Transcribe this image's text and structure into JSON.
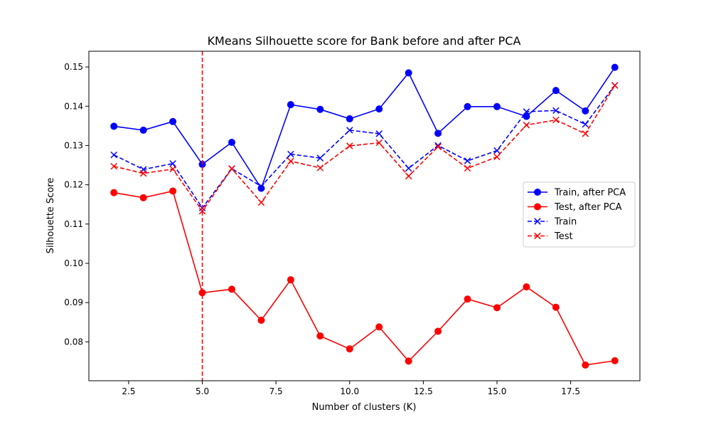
{
  "chart_data": {
    "type": "line",
    "title": "KMeans Silhouette score for Bank before and after PCA",
    "xlabel": "Number of clusters (K)",
    "ylabel": "Silhouette Score",
    "xlim": [
      1.15,
      19.85
    ],
    "ylim": [
      0.0701,
      0.154
    ],
    "xticks": [
      2.5,
      5.0,
      7.5,
      10.0,
      12.5,
      15.0,
      17.5
    ],
    "xtick_labels": [
      "2.5",
      "5.0",
      "7.5",
      "10.0",
      "12.5",
      "15.0",
      "17.5"
    ],
    "yticks": [
      0.08,
      0.09,
      0.1,
      0.11,
      0.12,
      0.13,
      0.14,
      0.15
    ],
    "ytick_labels": [
      "0.08",
      "0.09",
      "0.10",
      "0.11",
      "0.12",
      "0.13",
      "0.14",
      "0.15"
    ],
    "grid": false,
    "legend_position": "center-right",
    "x": [
      2,
      3,
      4,
      5,
      6,
      7,
      8,
      9,
      10,
      11,
      12,
      13,
      14,
      15,
      16,
      17,
      18,
      19
    ],
    "series": [
      {
        "name": "Train, after PCA",
        "color": "#0000ff",
        "style": "solid",
        "marker": "circle",
        "values": [
          0.1349,
          0.1339,
          0.1361,
          0.1252,
          0.1308,
          0.1191,
          0.1404,
          0.1392,
          0.1368,
          0.1393,
          0.1485,
          0.1331,
          0.1399,
          0.1399,
          0.1374,
          0.144,
          0.1388,
          0.1499
        ]
      },
      {
        "name": "Test, after PCA",
        "color": "#ff0000",
        "style": "solid",
        "marker": "circle",
        "values": [
          0.118,
          0.1167,
          0.1184,
          0.0925,
          0.0934,
          0.0855,
          0.0958,
          0.0815,
          0.0782,
          0.0838,
          0.0751,
          0.0827,
          0.0909,
          0.0887,
          0.094,
          0.0888,
          0.0741,
          0.0752
        ]
      },
      {
        "name": "Train",
        "color": "#0000ff",
        "style": "dashed",
        "marker": "x",
        "values": [
          0.1276,
          0.1239,
          0.1254,
          0.1141,
          0.1241,
          0.1196,
          0.1278,
          0.1268,
          0.1339,
          0.133,
          0.1242,
          0.13,
          0.1261,
          0.1287,
          0.1386,
          0.1389,
          0.1354,
          0.1453
        ]
      },
      {
        "name": "Test",
        "color": "#ff0000",
        "style": "dashed",
        "marker": "x",
        "values": [
          0.1247,
          0.1229,
          0.124,
          0.1133,
          0.1241,
          0.1155,
          0.126,
          0.1243,
          0.1299,
          0.1307,
          0.1222,
          0.1297,
          0.1242,
          0.1271,
          0.1352,
          0.1365,
          0.133,
          0.1453
        ]
      }
    ],
    "vline": {
      "x": 5,
      "color": "#ff0000",
      "style": "dashed"
    }
  }
}
